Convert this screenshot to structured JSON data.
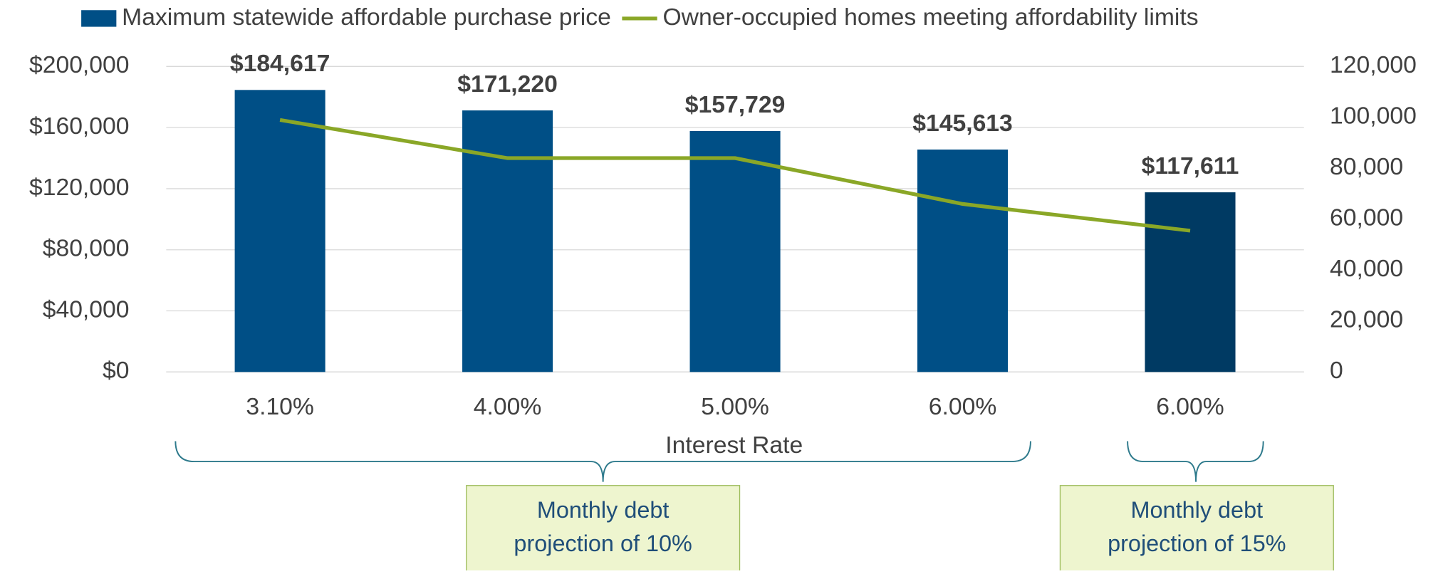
{
  "chart_data": {
    "type": "bar",
    "categories": [
      "3.10%",
      "4.00%",
      "5.00%",
      "6.00%",
      "6.00%"
    ],
    "x_label": "Interest Rate",
    "series": [
      {
        "name": "Maximum statewide affordable purchase price",
        "type": "bar",
        "colors": [
          "#004f86",
          "#004f86",
          "#004f86",
          "#004f86",
          "#003a63"
        ],
        "color": "#004f86",
        "values": [
          184617,
          171220,
          157729,
          145613,
          117611
        ],
        "value_labels": [
          "$184,617",
          "$171,220",
          "$157,729",
          "$145,613",
          "$117,611"
        ]
      },
      {
        "name": "Owner-occupied homes meeting affordability limits",
        "type": "line",
        "axis": "y2",
        "color": "#8aa727",
        "values": [
          99000,
          84000,
          84000,
          66000,
          55500
        ]
      }
    ],
    "ylim": [
      0,
      200000
    ],
    "yticks": [
      {
        "value": 0,
        "label": "$0"
      },
      {
        "value": 40000,
        "label": "$40,000"
      },
      {
        "value": 80000,
        "label": "$80,000"
      },
      {
        "value": 120000,
        "label": "$120,000"
      },
      {
        "value": 160000,
        "label": "$160,000"
      },
      {
        "value": 200000,
        "label": "$200,000"
      }
    ],
    "y2lim": [
      0,
      120000
    ],
    "y2ticks": [
      0,
      {
        "value": 20000,
        "label": "20,000"
      },
      {
        "value": 40000,
        "label": "40,000"
      },
      {
        "value": 60000,
        "label": "60,000"
      },
      {
        "value": 80000,
        "label": "80,000"
      },
      {
        "value": 100000,
        "label": "100,000"
      },
      {
        "value": 120000,
        "label": "120,000"
      }
    ],
    "grid": true,
    "legend": "top",
    "annotations": [
      "Monthly debt projection of 10%",
      "Monthly debt projection of 15%"
    ]
  }
}
